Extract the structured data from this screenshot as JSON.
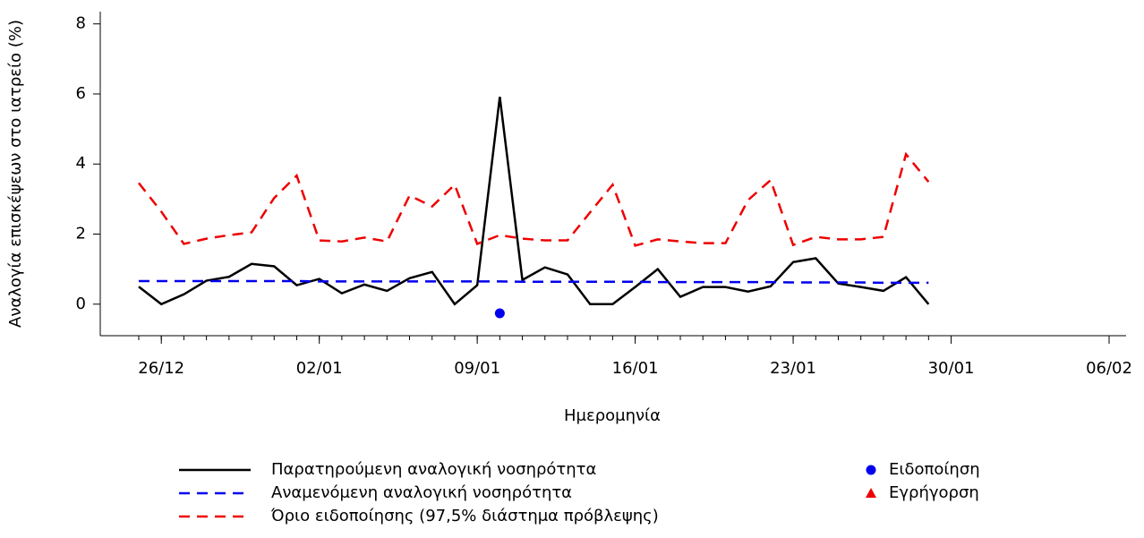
{
  "chart_data": {
    "type": "line",
    "ylabel": "Αναλογία επισκέψεων στο ιατρείο (%)",
    "xlabel": "Ημερομηνία",
    "x": [
      "25/12",
      "26/12",
      "27/12",
      "28/12",
      "29/12",
      "30/12",
      "31/12",
      "01/01",
      "02/01",
      "03/01",
      "04/01",
      "05/01",
      "06/01",
      "07/01",
      "08/01",
      "09/01",
      "10/01",
      "11/01",
      "12/01",
      "13/01",
      "14/01",
      "15/01",
      "16/01",
      "17/01",
      "18/01",
      "19/01",
      "20/01",
      "21/01",
      "22/01",
      "23/01",
      "24/01",
      "25/01",
      "26/01",
      "27/01",
      "28/01",
      "29/01"
    ],
    "series": [
      {
        "name": "Παρατηρούμενη αναλογική νοσηρότητα",
        "color": "#000000",
        "dash": false,
        "values": [
          0.5,
          0,
          0.28,
          0.67,
          0.78,
          1.15,
          1.08,
          0.54,
          0.72,
          0.31,
          0.56,
          0.38,
          0.74,
          0.92,
          0,
          0.54,
          5.92,
          0.69,
          1.05,
          0.85,
          0,
          0,
          0.49,
          1.0,
          0.21,
          0.49,
          0.49,
          0.36,
          0.51,
          1.2,
          1.31,
          0.59,
          0.49,
          0.38,
          0.77,
          0
        ]
      },
      {
        "name": "Αναμενόμενη αναλογική νοσηρότητα",
        "color": "#0000ee",
        "dash": true,
        "values": [
          0.66,
          0.66,
          0.66,
          0.66,
          0.66,
          0.66,
          0.66,
          0.66,
          0.65,
          0.65,
          0.65,
          0.65,
          0.65,
          0.65,
          0.65,
          0.65,
          0.65,
          0.64,
          0.64,
          0.64,
          0.64,
          0.64,
          0.64,
          0.63,
          0.63,
          0.63,
          0.63,
          0.63,
          0.63,
          0.62,
          0.62,
          0.62,
          0.62,
          0.61,
          0.61,
          0.61
        ]
      },
      {
        "name": "Όριο ειδοποίησης (97,5% διάστημα πρόβλεψης)",
        "color": "#ee0000",
        "dash": true,
        "values": [
          3.46,
          2.64,
          1.72,
          1.87,
          1.97,
          2.05,
          3.03,
          3.67,
          1.82,
          1.79,
          1.9,
          1.79,
          3.1,
          2.79,
          3.41,
          1.72,
          1.97,
          1.87,
          1.82,
          1.82,
          2.62,
          3.41,
          1.67,
          1.85,
          1.79,
          1.74,
          1.74,
          2.97,
          3.54,
          1.69,
          1.92,
          1.85,
          1.85,
          1.92,
          4.28,
          3.49
        ]
      }
    ],
    "points": [
      {
        "name": "Ειδοποίηση",
        "color": "#0000ee",
        "marker": "circle",
        "x": [
          "10/01"
        ],
        "values": [
          -0.26
        ]
      },
      {
        "name": "Εγρήγορση",
        "color": "#ee0000",
        "marker": "triangle",
        "x": [],
        "values": []
      }
    ],
    "xlim": [
      "25/12",
      "06/02"
    ],
    "xticks": [
      "26/12",
      "02/01",
      "09/01",
      "16/01",
      "23/01",
      "30/01",
      "06/02"
    ],
    "ylim": [
      -0.9,
      8.35
    ],
    "yticks": [
      0,
      2,
      4,
      6,
      8
    ]
  }
}
